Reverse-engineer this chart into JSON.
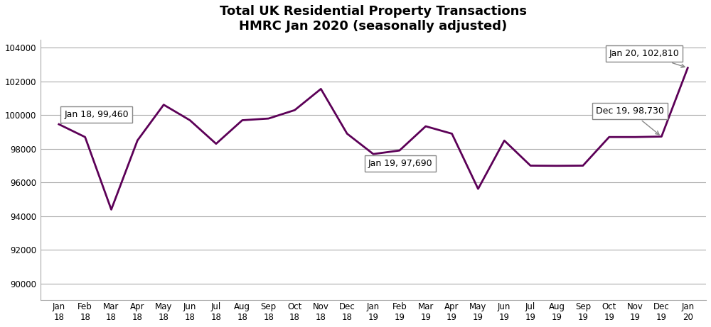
{
  "title": "Total UK Residential Property Transactions\nHMRC Jan 2020 (seasonally adjusted)",
  "x_labels": [
    "Jan\n18",
    "Feb\n18",
    "Mar\n18",
    "Apr\n18",
    "May\n18",
    "Jun\n18",
    "Jul\n18",
    "Aug\n18",
    "Sep\n18",
    "Oct\n18",
    "Nov\n18",
    "Dec\n18",
    "Jan\n19",
    "Feb\n19",
    "Mar\n19",
    "Apr\n19",
    "May\n19",
    "Jun\n19",
    "Jul\n19",
    "Aug\n19",
    "Sep\n19",
    "Oct\n19",
    "Nov\n19",
    "Dec\n19",
    "Jan\n20"
  ],
  "values": [
    99460,
    98700,
    94390,
    98500,
    100620,
    99700,
    98300,
    99700,
    99800,
    100300,
    101560,
    98900,
    97690,
    97900,
    99340,
    98900,
    95620,
    98490,
    97000,
    96990,
    97000,
    98700,
    98700,
    98730,
    102810
  ],
  "line_color": "#5C0057",
  "line_width": 2.0,
  "ylim": [
    89000,
    104500
  ],
  "yticks": [
    90000,
    92000,
    94000,
    96000,
    98000,
    100000,
    102000,
    104000
  ],
  "grid_color": "#AAAAAA",
  "background_color": "#FFFFFF",
  "title_fontsize": 13,
  "tick_fontsize": 8.5,
  "annot_fontsize": 9
}
